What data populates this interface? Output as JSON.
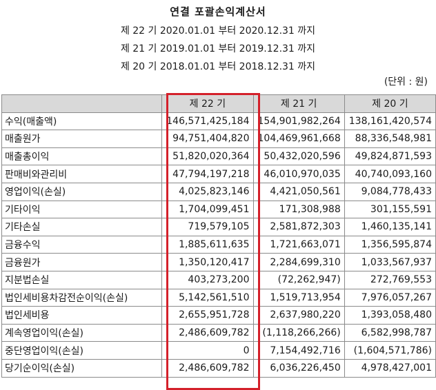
{
  "title": "연결 포괄손익계산서",
  "periods": [
    "제 22 기 2020.01.01 부터 2020.12.31 까지",
    "제 21 기 2019.01.01 부터 2019.12.31 까지",
    "제 20 기 2018.01.01 부터 2018.12.31 까지"
  ],
  "unit": "(단위 : 원)",
  "columns": [
    "",
    "제 22 기",
    "제 21 기",
    "제 20 기"
  ],
  "rows": [
    {
      "label": "수익(매출액)",
      "v22": "146,571,425,184",
      "v21": "154,901,982,264",
      "v20": "138,161,420,574"
    },
    {
      "label": "매출원가",
      "v22": "94,751,404,820",
      "v21": "104,469,961,668",
      "v20": "88,336,548,981"
    },
    {
      "label": "매출총이익",
      "v22": "51,820,020,364",
      "v21": "50,432,020,596",
      "v20": "49,824,871,593"
    },
    {
      "label": "판매비와관리비",
      "v22": "47,794,197,218",
      "v21": "46,010,970,035",
      "v20": "40,740,093,160"
    },
    {
      "label": "영업이익(손실)",
      "v22": "4,025,823,146",
      "v21": "4,421,050,561",
      "v20": "9,084,778,433"
    },
    {
      "label": "기타이익",
      "v22": "1,704,099,451",
      "v21": "171,308,988",
      "v20": "301,155,591"
    },
    {
      "label": "기타손실",
      "v22": "719,579,105",
      "v21": "2,581,872,303",
      "v20": "1,460,135,141"
    },
    {
      "label": "금융수익",
      "v22": "1,885,611,635",
      "v21": "1,721,663,071",
      "v20": "1,356,595,874"
    },
    {
      "label": "금융원가",
      "v22": "1,350,120,417",
      "v21": "2,284,699,310",
      "v20": "1,033,567,937"
    },
    {
      "label": "지분법손실",
      "v22": "403,273,200",
      "v21": "(72,262,947)",
      "v20": "272,769,553"
    },
    {
      "label": "법인세비용차감전순이익(손실)",
      "v22": "5,142,561,510",
      "v21": "1,519,713,954",
      "v20": "7,976,057,267"
    },
    {
      "label": "법인세비용",
      "v22": "2,655,951,728",
      "v21": "2,637,980,220",
      "v20": "1,393,058,480"
    },
    {
      "label": "계속영업이익(손실)",
      "v22": "2,486,609,782",
      "v21": "(1,118,266,266)",
      "v20": "6,582,998,787"
    },
    {
      "label": "중단영업이익(손실)",
      "v22": "0",
      "v21": "7,154,492,716",
      "v20": "(1,604,571,786)"
    },
    {
      "label": "당기순이익(손실)",
      "v22": "2,486,609,782",
      "v21": "6,036,226,450",
      "v20": "4,978,427,001"
    }
  ],
  "highlight_color": "#d4202a"
}
